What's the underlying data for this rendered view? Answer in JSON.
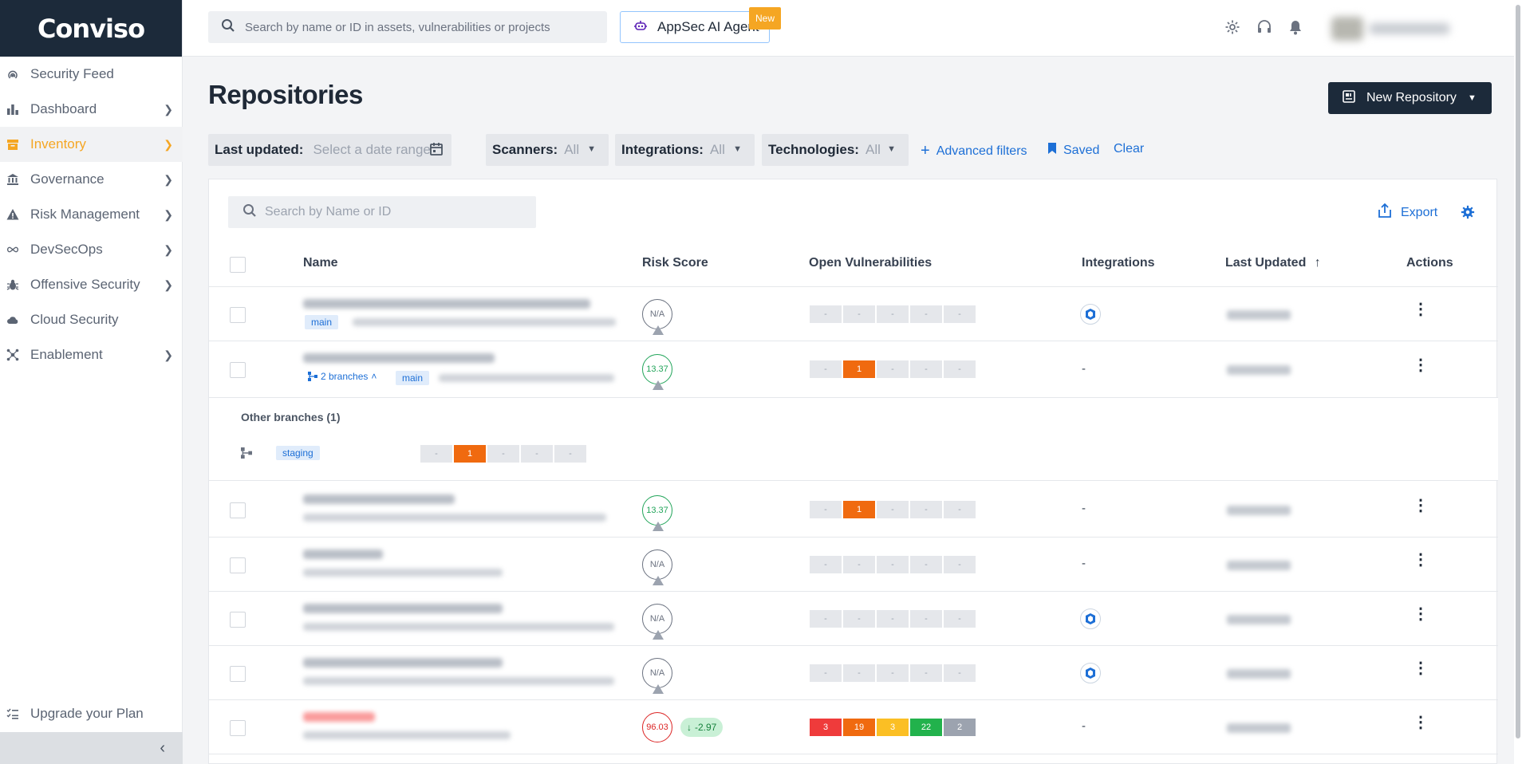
{
  "brand": {
    "logo_text": "Conviso"
  },
  "sidebar": {
    "items": [
      {
        "label": "Security Feed",
        "icon": "radar-icon",
        "chevron": false,
        "active": false
      },
      {
        "label": "Dashboard",
        "icon": "bar-chart-icon",
        "chevron": true,
        "active": false
      },
      {
        "label": "Inventory",
        "icon": "archive-icon",
        "chevron": true,
        "active": true
      },
      {
        "label": "Governance",
        "icon": "bank-icon",
        "chevron": true,
        "active": false
      },
      {
        "label": "Risk Management",
        "icon": "warning-icon",
        "chevron": true,
        "active": false
      },
      {
        "label": "DevSecOps",
        "icon": "infinity-icon",
        "chevron": true,
        "active": false
      },
      {
        "label": "Offensive Security",
        "icon": "bug-icon",
        "chevron": true,
        "active": false
      },
      {
        "label": "Cloud Security",
        "icon": "cloud-icon",
        "chevron": false,
        "active": false
      },
      {
        "label": "Enablement",
        "icon": "network-icon",
        "chevron": true,
        "active": false
      }
    ],
    "upgrade": {
      "label": "Upgrade your Plan",
      "icon": "checklist-icon"
    },
    "collapse_icon": "chevron-left-icon"
  },
  "topbar": {
    "search_placeholder": "Search by name or ID in assets, vulnerabilities or projects",
    "ai_agent_label": "AppSec AI Agent",
    "new_badge": "New"
  },
  "page": {
    "title": "Repositories",
    "new_repo_label": "New Repository"
  },
  "filters": {
    "last_updated": {
      "label": "Last updated:",
      "placeholder": "Select a date range"
    },
    "scanners": {
      "label": "Scanners:",
      "value": "All"
    },
    "integrations": {
      "label": "Integrations:",
      "value": "All"
    },
    "technologies": {
      "label": "Technologies:",
      "value": "All"
    },
    "advanced": "Advanced filters",
    "saved": "Saved",
    "clear": "Clear"
  },
  "table": {
    "search_placeholder": "Search by Name or ID",
    "export_label": "Export",
    "headers": {
      "name": "Name",
      "risk": "Risk Score",
      "vulns": "Open Vulnerabilities",
      "integrations": "Integrations",
      "updated": "Last Updated",
      "actions": "Actions"
    },
    "rows": [
      {
        "branch_tag": "main",
        "risk": "N/A",
        "vulns": [
          "-",
          "-",
          "-",
          "-",
          "-"
        ],
        "integration": "icon"
      },
      {
        "branches_link": "2 branches",
        "branch_tag": "main",
        "risk": "13.37",
        "vulns": [
          "-",
          "1",
          "-",
          "-",
          "-"
        ],
        "integration": "-"
      },
      {
        "risk": "13.37",
        "vulns": [
          "-",
          "1",
          "-",
          "-",
          "-"
        ],
        "integration": "-"
      },
      {
        "risk": "N/A",
        "vulns": [
          "-",
          "-",
          "-",
          "-",
          "-"
        ],
        "integration": "-"
      },
      {
        "risk": "N/A",
        "vulns": [
          "-",
          "-",
          "-",
          "-",
          "-"
        ],
        "integration": "icon"
      },
      {
        "risk": "N/A",
        "vulns": [
          "-",
          "-",
          "-",
          "-",
          "-"
        ],
        "integration": "icon"
      },
      {
        "risk": "96.03",
        "delta": "-2.97",
        "vulns": [
          "3",
          "19",
          "3",
          "22",
          "2"
        ],
        "integration": "-"
      }
    ],
    "other_branches": {
      "title": "Other branches (1)",
      "tag": "staging",
      "vulns": [
        "-",
        "1",
        "-",
        "-",
        "-"
      ]
    }
  },
  "colors": {
    "brand_dark": "#1c2a3a",
    "accent": "#f5a623",
    "link": "#1d6fd6",
    "critical": "#ef3b3b",
    "high": "#f06a0f",
    "medium": "#fbbf24",
    "low": "#22b24c",
    "info": "#9ca3af"
  }
}
